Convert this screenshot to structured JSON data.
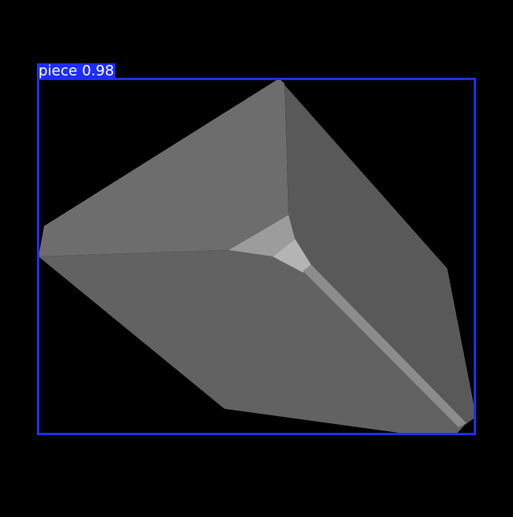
{
  "detection": {
    "label": "piece 0.98",
    "box_color": "#1E2DFF"
  }
}
